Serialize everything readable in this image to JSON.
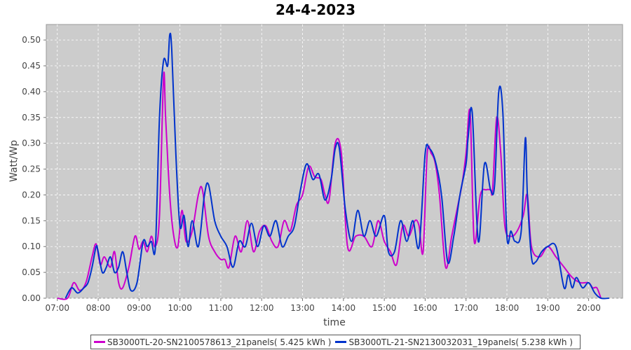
{
  "chart_data": {
    "type": "line",
    "title": "24-4-2023",
    "xlabel": "time",
    "ylabel": "Watt/Wp",
    "x_ticks": [
      "07:00",
      "08:00",
      "09:00",
      "10:00",
      "11:00",
      "12:00",
      "13:00",
      "14:00",
      "15:00",
      "16:00",
      "17:00",
      "18:00",
      "19:00",
      "20:00"
    ],
    "x_range_hours": [
      6.73,
      20.83
    ],
    "y_ticks": [
      "0.00",
      "0.05",
      "0.10",
      "0.15",
      "0.20",
      "0.25",
      "0.30",
      "0.35",
      "0.40",
      "0.45",
      "0.50"
    ],
    "ylim": [
      0,
      0.53
    ],
    "grid": true,
    "legend_position": "bottom-center",
    "series": [
      {
        "name": "SB3000TL-20-SN2100578613_21panels( 5.425 kWh )",
        "color": "#cc00cc",
        "x": [
          7.0,
          7.25,
          7.4,
          7.55,
          7.7,
          7.85,
          7.95,
          8.05,
          8.15,
          8.3,
          8.4,
          8.5,
          8.6,
          8.75,
          8.9,
          9.0,
          9.1,
          9.2,
          9.3,
          9.4,
          9.5,
          9.6,
          9.65,
          9.75,
          9.85,
          9.95,
          10.05,
          10.15,
          10.3,
          10.45,
          10.55,
          10.7,
          10.85,
          11.0,
          11.1,
          11.2,
          11.35,
          11.5,
          11.65,
          11.8,
          11.95,
          12.1,
          12.25,
          12.4,
          12.55,
          12.7,
          12.85,
          13.0,
          13.15,
          13.3,
          13.45,
          13.55,
          13.65,
          13.8,
          13.95,
          14.1,
          14.3,
          14.5,
          14.7,
          14.85,
          15.0,
          15.15,
          15.3,
          15.45,
          15.6,
          15.75,
          15.85,
          15.95,
          16.05,
          16.15,
          16.25,
          16.35,
          16.5,
          16.65,
          16.8,
          16.9,
          17.0,
          17.1,
          17.2,
          17.35,
          17.5,
          17.6,
          17.65,
          17.75,
          17.85,
          17.95,
          18.1,
          18.25,
          18.4,
          18.5,
          18.6,
          18.8,
          19.0,
          19.2,
          19.4,
          19.6,
          19.8,
          20.0,
          20.1,
          20.2,
          20.3
        ],
        "values": [
          0.0,
          0.0,
          0.03,
          0.015,
          0.03,
          0.08,
          0.105,
          0.065,
          0.08,
          0.06,
          0.09,
          0.03,
          0.02,
          0.06,
          0.12,
          0.095,
          0.11,
          0.09,
          0.12,
          0.1,
          0.16,
          0.43,
          0.35,
          0.2,
          0.12,
          0.1,
          0.17,
          0.11,
          0.13,
          0.2,
          0.21,
          0.12,
          0.09,
          0.075,
          0.075,
          0.06,
          0.12,
          0.09,
          0.15,
          0.09,
          0.13,
          0.14,
          0.11,
          0.1,
          0.15,
          0.13,
          0.18,
          0.2,
          0.255,
          0.235,
          0.23,
          0.2,
          0.19,
          0.3,
          0.28,
          0.1,
          0.12,
          0.12,
          0.1,
          0.15,
          0.11,
          0.09,
          0.065,
          0.14,
          0.12,
          0.15,
          0.14,
          0.09,
          0.28,
          0.28,
          0.26,
          0.2,
          0.06,
          0.12,
          0.18,
          0.22,
          0.28,
          0.36,
          0.11,
          0.2,
          0.21,
          0.21,
          0.21,
          0.35,
          0.28,
          0.14,
          0.12,
          0.13,
          0.16,
          0.2,
          0.1,
          0.08,
          0.1,
          0.08,
          0.06,
          0.04,
          0.03,
          0.03,
          0.02,
          0.02,
          0.0
        ]
      },
      {
        "name": "SB3000TL-21-SN2130032031_19panels( 5.238 kWh )",
        "color": "#0033cc",
        "x": [
          7.2,
          7.35,
          7.5,
          7.65,
          7.75,
          7.85,
          7.95,
          8.0,
          8.1,
          8.2,
          8.3,
          8.4,
          8.5,
          8.6,
          8.7,
          8.8,
          8.95,
          9.1,
          9.2,
          9.3,
          9.4,
          9.5,
          9.6,
          9.7,
          9.75,
          9.8,
          9.9,
          10.0,
          10.1,
          10.2,
          10.3,
          10.45,
          10.6,
          10.7,
          10.85,
          11.0,
          11.15,
          11.3,
          11.45,
          11.6,
          11.75,
          11.9,
          12.05,
          12.2,
          12.35,
          12.5,
          12.65,
          12.8,
          12.95,
          13.1,
          13.25,
          13.4,
          13.55,
          13.7,
          13.8,
          13.9,
          14.05,
          14.2,
          14.35,
          14.5,
          14.65,
          14.8,
          15.0,
          15.1,
          15.25,
          15.4,
          15.55,
          15.7,
          15.85,
          16.0,
          16.1,
          16.25,
          16.4,
          16.55,
          16.7,
          16.85,
          17.0,
          17.05,
          17.15,
          17.3,
          17.45,
          17.6,
          17.7,
          17.8,
          17.9,
          18.0,
          18.1,
          18.2,
          18.35,
          18.45,
          18.5,
          18.6,
          18.7,
          18.85,
          19.0,
          19.2,
          19.4,
          19.5,
          19.6,
          19.7,
          19.85,
          20.0,
          20.15,
          20.3,
          20.5
        ],
        "values": [
          0.0,
          0.02,
          0.01,
          0.02,
          0.03,
          0.06,
          0.1,
          0.09,
          0.05,
          0.06,
          0.08,
          0.05,
          0.06,
          0.09,
          0.05,
          0.015,
          0.03,
          0.11,
          0.1,
          0.11,
          0.1,
          0.35,
          0.46,
          0.45,
          0.51,
          0.48,
          0.28,
          0.14,
          0.16,
          0.1,
          0.15,
          0.1,
          0.2,
          0.22,
          0.15,
          0.12,
          0.1,
          0.06,
          0.11,
          0.1,
          0.145,
          0.1,
          0.14,
          0.12,
          0.15,
          0.1,
          0.12,
          0.14,
          0.21,
          0.26,
          0.23,
          0.24,
          0.19,
          0.23,
          0.29,
          0.29,
          0.17,
          0.11,
          0.17,
          0.12,
          0.15,
          0.12,
          0.16,
          0.09,
          0.09,
          0.15,
          0.11,
          0.15,
          0.1,
          0.28,
          0.29,
          0.265,
          0.2,
          0.07,
          0.12,
          0.2,
          0.26,
          0.31,
          0.36,
          0.11,
          0.26,
          0.21,
          0.22,
          0.4,
          0.36,
          0.12,
          0.13,
          0.11,
          0.13,
          0.31,
          0.2,
          0.08,
          0.07,
          0.09,
          0.1,
          0.1,
          0.02,
          0.045,
          0.02,
          0.04,
          0.02,
          0.03,
          0.01,
          0.0,
          0.0
        ]
      }
    ]
  }
}
